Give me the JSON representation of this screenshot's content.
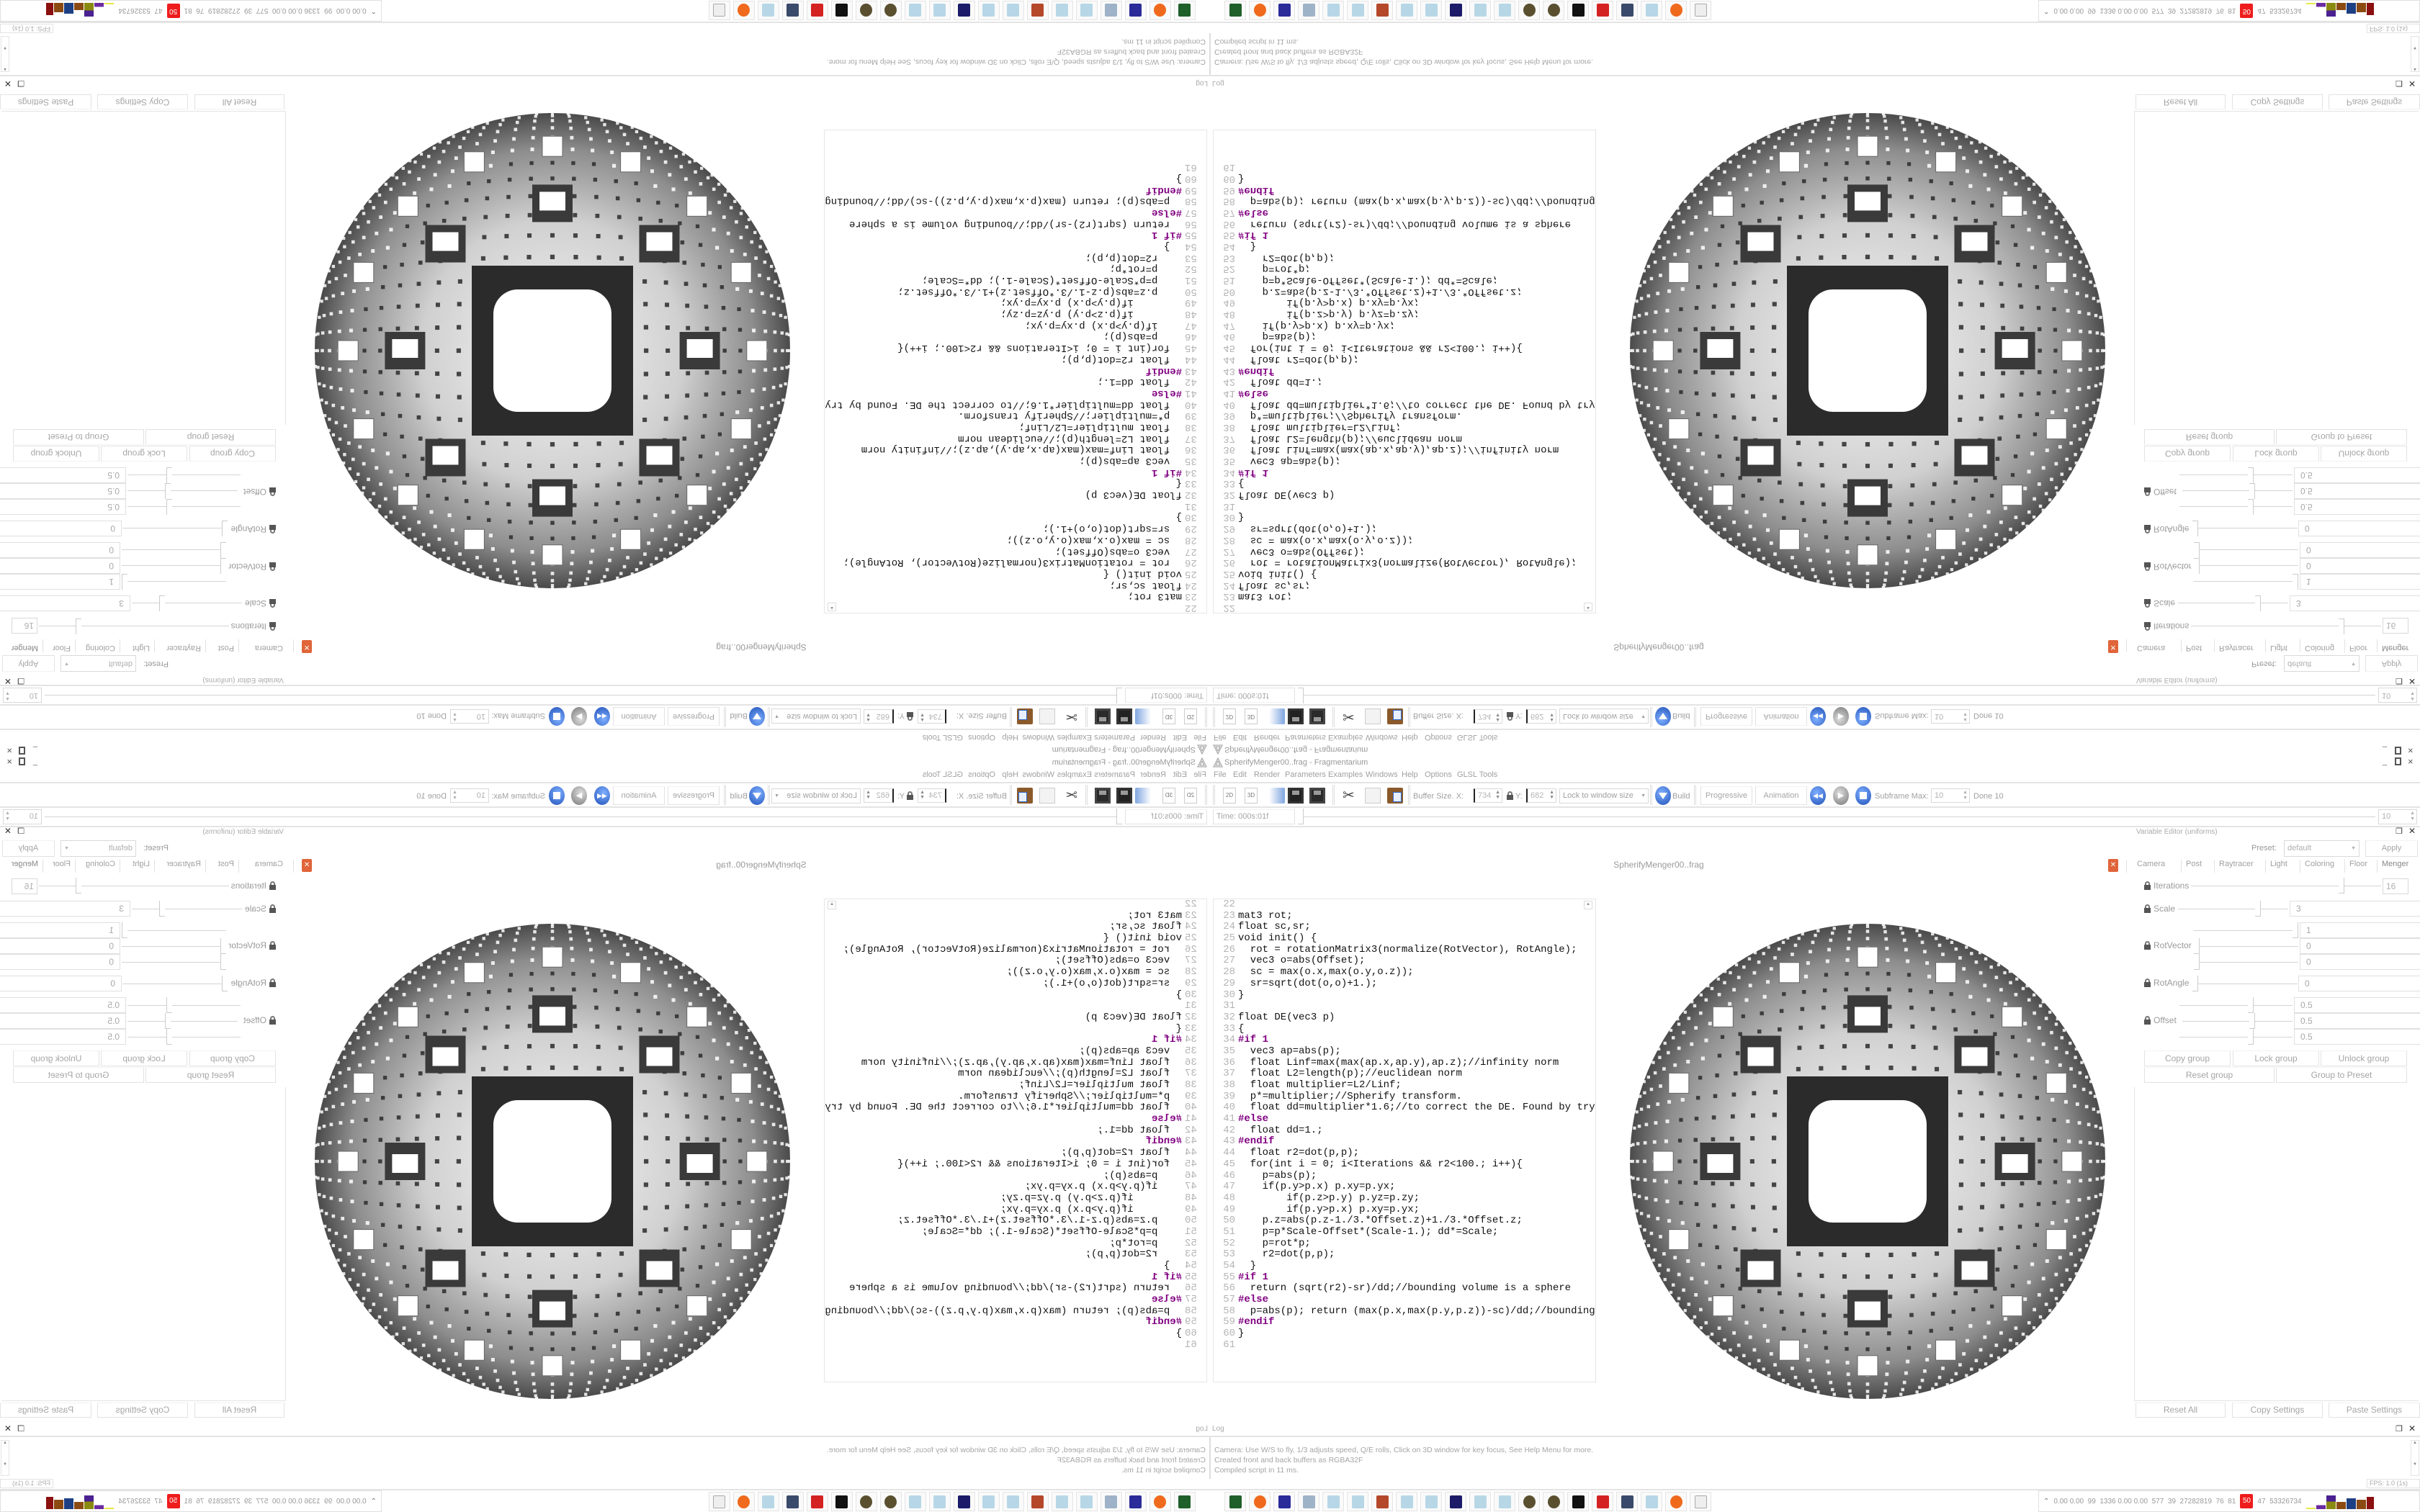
{
  "window": {
    "title": "SpherifyMenger00..frag - Fragmentarium",
    "controls": [
      "minimize",
      "restore",
      "close"
    ]
  },
  "menu": [
    "File",
    "Edit",
    "Render",
    "Parameters",
    "Examples",
    "Windows",
    "Help",
    "Options",
    "GLSL Tools"
  ],
  "toolbar": {
    "icons": [
      "2d-view-icon",
      "3d-view-icon",
      "open-folder-icon",
      "save-icon",
      "save-as-icon",
      "cut-icon",
      "copy-icon",
      "paste-icon"
    ],
    "label_2d": "2D",
    "label_3d": "3D",
    "buffer_label": "Buffer Size. X:",
    "buffer_x": "734",
    "y_label": "Y:",
    "buffer_y": "682",
    "lock_mode": "Lock to window size",
    "build": "Build",
    "progressive": "Progressive",
    "animation": "Animation",
    "subframe_label": "Subframe Max:",
    "subframe_max": "10",
    "done": "Done 10"
  },
  "timebar": {
    "time": "Time: 000s:01f",
    "frames": "10",
    "position": 0.0
  },
  "editor": {
    "tab": "SpherifyMenger00..frag",
    "first_line": 22,
    "lines": [
      "",
      "mat3 rot;",
      "float sc,sr;",
      "void init() {",
      "  rot = rotationMatrix3(normalize(RotVector), RotAngle);",
      "  vec3 o=abs(Offset);",
      "  sc = max(o.x,max(o.y,o.z));",
      "  sr=sqrt(dot(o,o)+1.);",
      "}",
      "",
      "float DE(vec3 p)",
      "{",
      "#if 1",
      "  vec3 ap=abs(p);",
      "  float Linf=max(max(ap.x,ap.y),ap.z);//infinity norm",
      "  float L2=length(p);//euclidean norm",
      "  float multiplier=L2/Linf;",
      "  p*=multiplier;//Spherify transform.",
      "  float dd=multiplier*1.6;//to correct the DE. Found by try",
      "#else",
      "  float dd=1.;",
      "#endif",
      "  float r2=dot(p,p);",
      "  for(int i = 0; i<Iterations && r2<100.; i++){",
      "    p=abs(p);",
      "    if(p.y>p.x) p.xy=p.yx;",
      "        if(p.z>p.y) p.yz=p.zy;",
      "        if(p.y>p.x) p.xy=p.yx;",
      "    p.z=abs(p.z-1./3.*Offset.z)+1./3.*Offset.z;",
      "    p=p*Scale-Offset*(Scale-1.); dd*=Scale;",
      "    p=rot*p;",
      "    r2=dot(p,p);",
      "  }",
      "#if 1",
      "  return (sqrt(r2)-sr)/dd;//bounding volume is a sphere",
      "#else",
      "  p=abs(p); return (max(p.x,max(p.y,p.z))-sc)/dd;//bounding",
      "#endif",
      "}",
      ""
    ]
  },
  "variable_editor": {
    "title": "Variable Editor (uniforms)",
    "preset_label": "Preset:",
    "preset": "default",
    "apply": "Apply",
    "tabs": [
      "Camera",
      "Post",
      "Raytracer",
      "Light",
      "Coloring",
      "Floor",
      "Menger"
    ],
    "active_tab": "Menger",
    "params": {
      "iterations": {
        "label": "Iterations",
        "value": "16",
        "slider": 0.8
      },
      "scale": {
        "label": "Scale",
        "value": "3",
        "slider": 0.74
      },
      "rotvector": {
        "label": "RotVector",
        "values": [
          "1",
          "0",
          "0"
        ],
        "sliders": [
          1.0,
          0.0,
          0.0
        ]
      },
      "rotangle": {
        "label": "RotAngle",
        "value": "0",
        "slider": 0.0
      },
      "offset": {
        "label": "Offset",
        "values": [
          "0.5",
          "0.5",
          "0.5"
        ],
        "sliders": [
          0.64,
          0.64,
          0.64
        ]
      }
    },
    "group_buttons": {
      "copy": "Copy group",
      "lock": "Lock group",
      "unlock": "Unlock group",
      "reset": "Reset group",
      "to_preset": "Group to Preset"
    },
    "bottom_buttons": {
      "reset_all": "Reset All",
      "copy_settings": "Copy Settings",
      "paste_settings": "Paste Settings"
    }
  },
  "log": {
    "title": "Log",
    "lines": [
      "Camera: Use W/S to fly, 1/3 adjusts speed, Q/E rolls, Click on 3D window for key focus, See Help Menu for more.",
      "Created front and back buffers as RGBA32F",
      "Compiled script in 11 ms."
    ],
    "fps": "FPS: 1.0 (1s)"
  },
  "taskbar": {
    "icons": [
      "terminal-icon",
      "firefox-icon",
      "c64-disk-icon",
      "document-stack-icon",
      "notepad-icon",
      "notepad-icon",
      "bug-icon",
      "notepad-icon",
      "notepad-icon",
      "jpeg-viewer-icon",
      "notepad-icon",
      "notepad-icon",
      "coin-icon",
      "coin-icon",
      "mask-icon",
      "red-app-icon",
      "monitor-icon",
      "notepad-icon",
      "firefox-icon",
      "fragmentarium-icon"
    ],
    "tray": {
      "stats": "0.00 0.00  99  1336 0.00 0.00  577  39  27282819  76  81",
      "alert": "50",
      "stats2": "47  53326734",
      "alert_color": "#ee1c1c"
    }
  },
  "colors": {
    "accent_blue": "#1f4fb8",
    "close_orange": "#e0653a",
    "ui_text": "#9a9a9a"
  }
}
